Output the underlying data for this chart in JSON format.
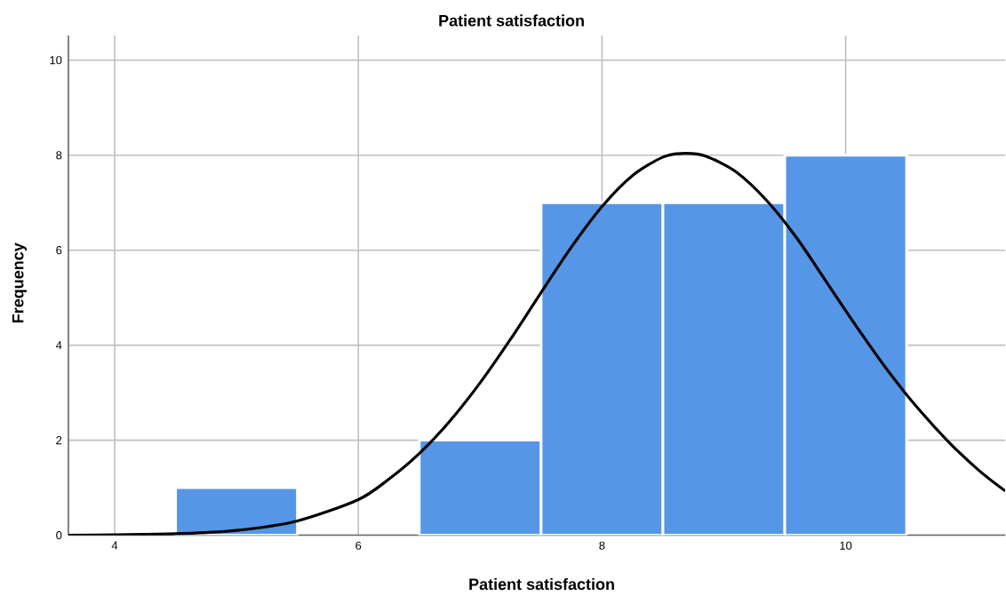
{
  "chart_data": {
    "type": "histogram",
    "title": "Patient satisfaction",
    "xlabel": "Patient satisfaction",
    "ylabel": "Frequency",
    "bins": [
      4.5,
      5.5,
      6.5,
      7.5,
      8.5,
      9.5,
      10.5
    ],
    "values": [
      1,
      0,
      2,
      7,
      7,
      8
    ],
    "color": "#5596e6",
    "series": [
      {
        "type": "line",
        "color": "#000000",
        "x": [
          3.62,
          4.0,
          4.5,
          5.0,
          5.5,
          6.0,
          6.25,
          6.5,
          6.75,
          7.0,
          7.25,
          7.5,
          7.75,
          8.0,
          8.25,
          8.5,
          8.68,
          8.85,
          9.1,
          9.35,
          9.6,
          9.85,
          10.1,
          10.35,
          10.6,
          10.85,
          11.1,
          11.31
        ],
        "values": [
          0.0,
          0.01,
          0.03,
          0.1,
          0.3,
          0.75,
          1.18,
          1.72,
          2.4,
          3.21,
          4.13,
          5.11,
          6.07,
          6.92,
          7.57,
          7.96,
          8.04,
          7.98,
          7.65,
          7.05,
          6.25,
          5.3,
          4.35,
          3.45,
          2.65,
          1.95,
          1.35,
          0.93
        ]
      }
    ],
    "xlim": [
      3.62,
      11.31
    ],
    "ylim": [
      0,
      10.52
    ],
    "xticks": [
      4,
      6,
      8,
      10
    ],
    "yticks": [
      0,
      2,
      4,
      6,
      8,
      10
    ],
    "grid": true
  }
}
